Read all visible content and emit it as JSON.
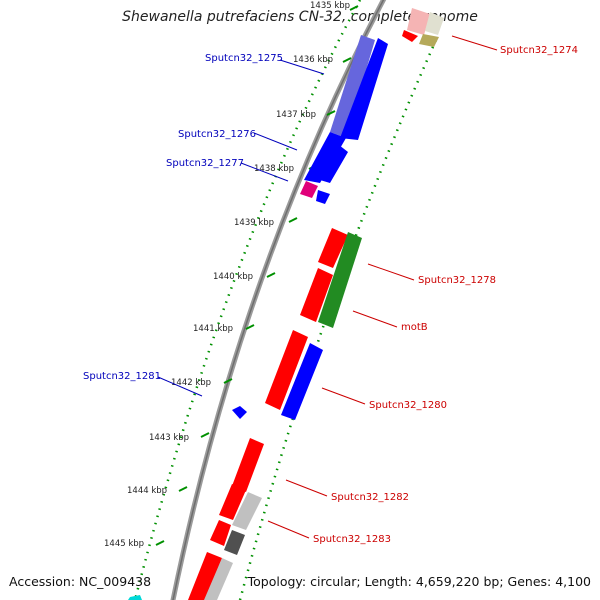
{
  "title": "Shewanella putrefaciens CN-32, complete genome",
  "footer": {
    "accession": "Accession: NC_009438",
    "summary": "Topology: circular; Length: 4,659,220 bp; Genes: 4,100"
  },
  "colors": {
    "forward_gene": "#ff0000",
    "reverse_gene": "#0000ff",
    "green_gene": "#228b22",
    "gray_gene": "#c0c0c0",
    "dark_gray_gene": "#505050",
    "magenta_gene": "#e0007a",
    "olive_gene": "#b5a95a",
    "tick_green": "#009000",
    "forward_label": "#cc0000",
    "reverse_label": "#0000bb"
  },
  "ticks": [
    {
      "label": "1435 kbp"
    },
    {
      "label": "1436 kbp"
    },
    {
      "label": "1437 kbp"
    },
    {
      "label": "1438 kbp"
    },
    {
      "label": "1439 kbp"
    },
    {
      "label": "1440 kbp"
    },
    {
      "label": "1441 kbp"
    },
    {
      "label": "1442 kbp"
    },
    {
      "label": "1443 kbp"
    },
    {
      "label": "1444 kbp"
    },
    {
      "label": "1445 kbp"
    }
  ],
  "gene_labels": [
    {
      "text": "Sputcn32_1274",
      "strand": "forward"
    },
    {
      "text": "Sputcn32_1275",
      "strand": "reverse"
    },
    {
      "text": "Sputcn32_1276",
      "strand": "reverse"
    },
    {
      "text": "Sputcn32_1277",
      "strand": "reverse"
    },
    {
      "text": "Sputcn32_1278",
      "strand": "forward"
    },
    {
      "text": "motB",
      "strand": "forward"
    },
    {
      "text": "Sputcn32_1280",
      "strand": "forward"
    },
    {
      "text": "Sputcn32_1281",
      "strand": "reverse"
    },
    {
      "text": "Sputcn32_1282",
      "strand": "forward"
    },
    {
      "text": "Sputcn32_1283",
      "strand": "forward"
    }
  ]
}
